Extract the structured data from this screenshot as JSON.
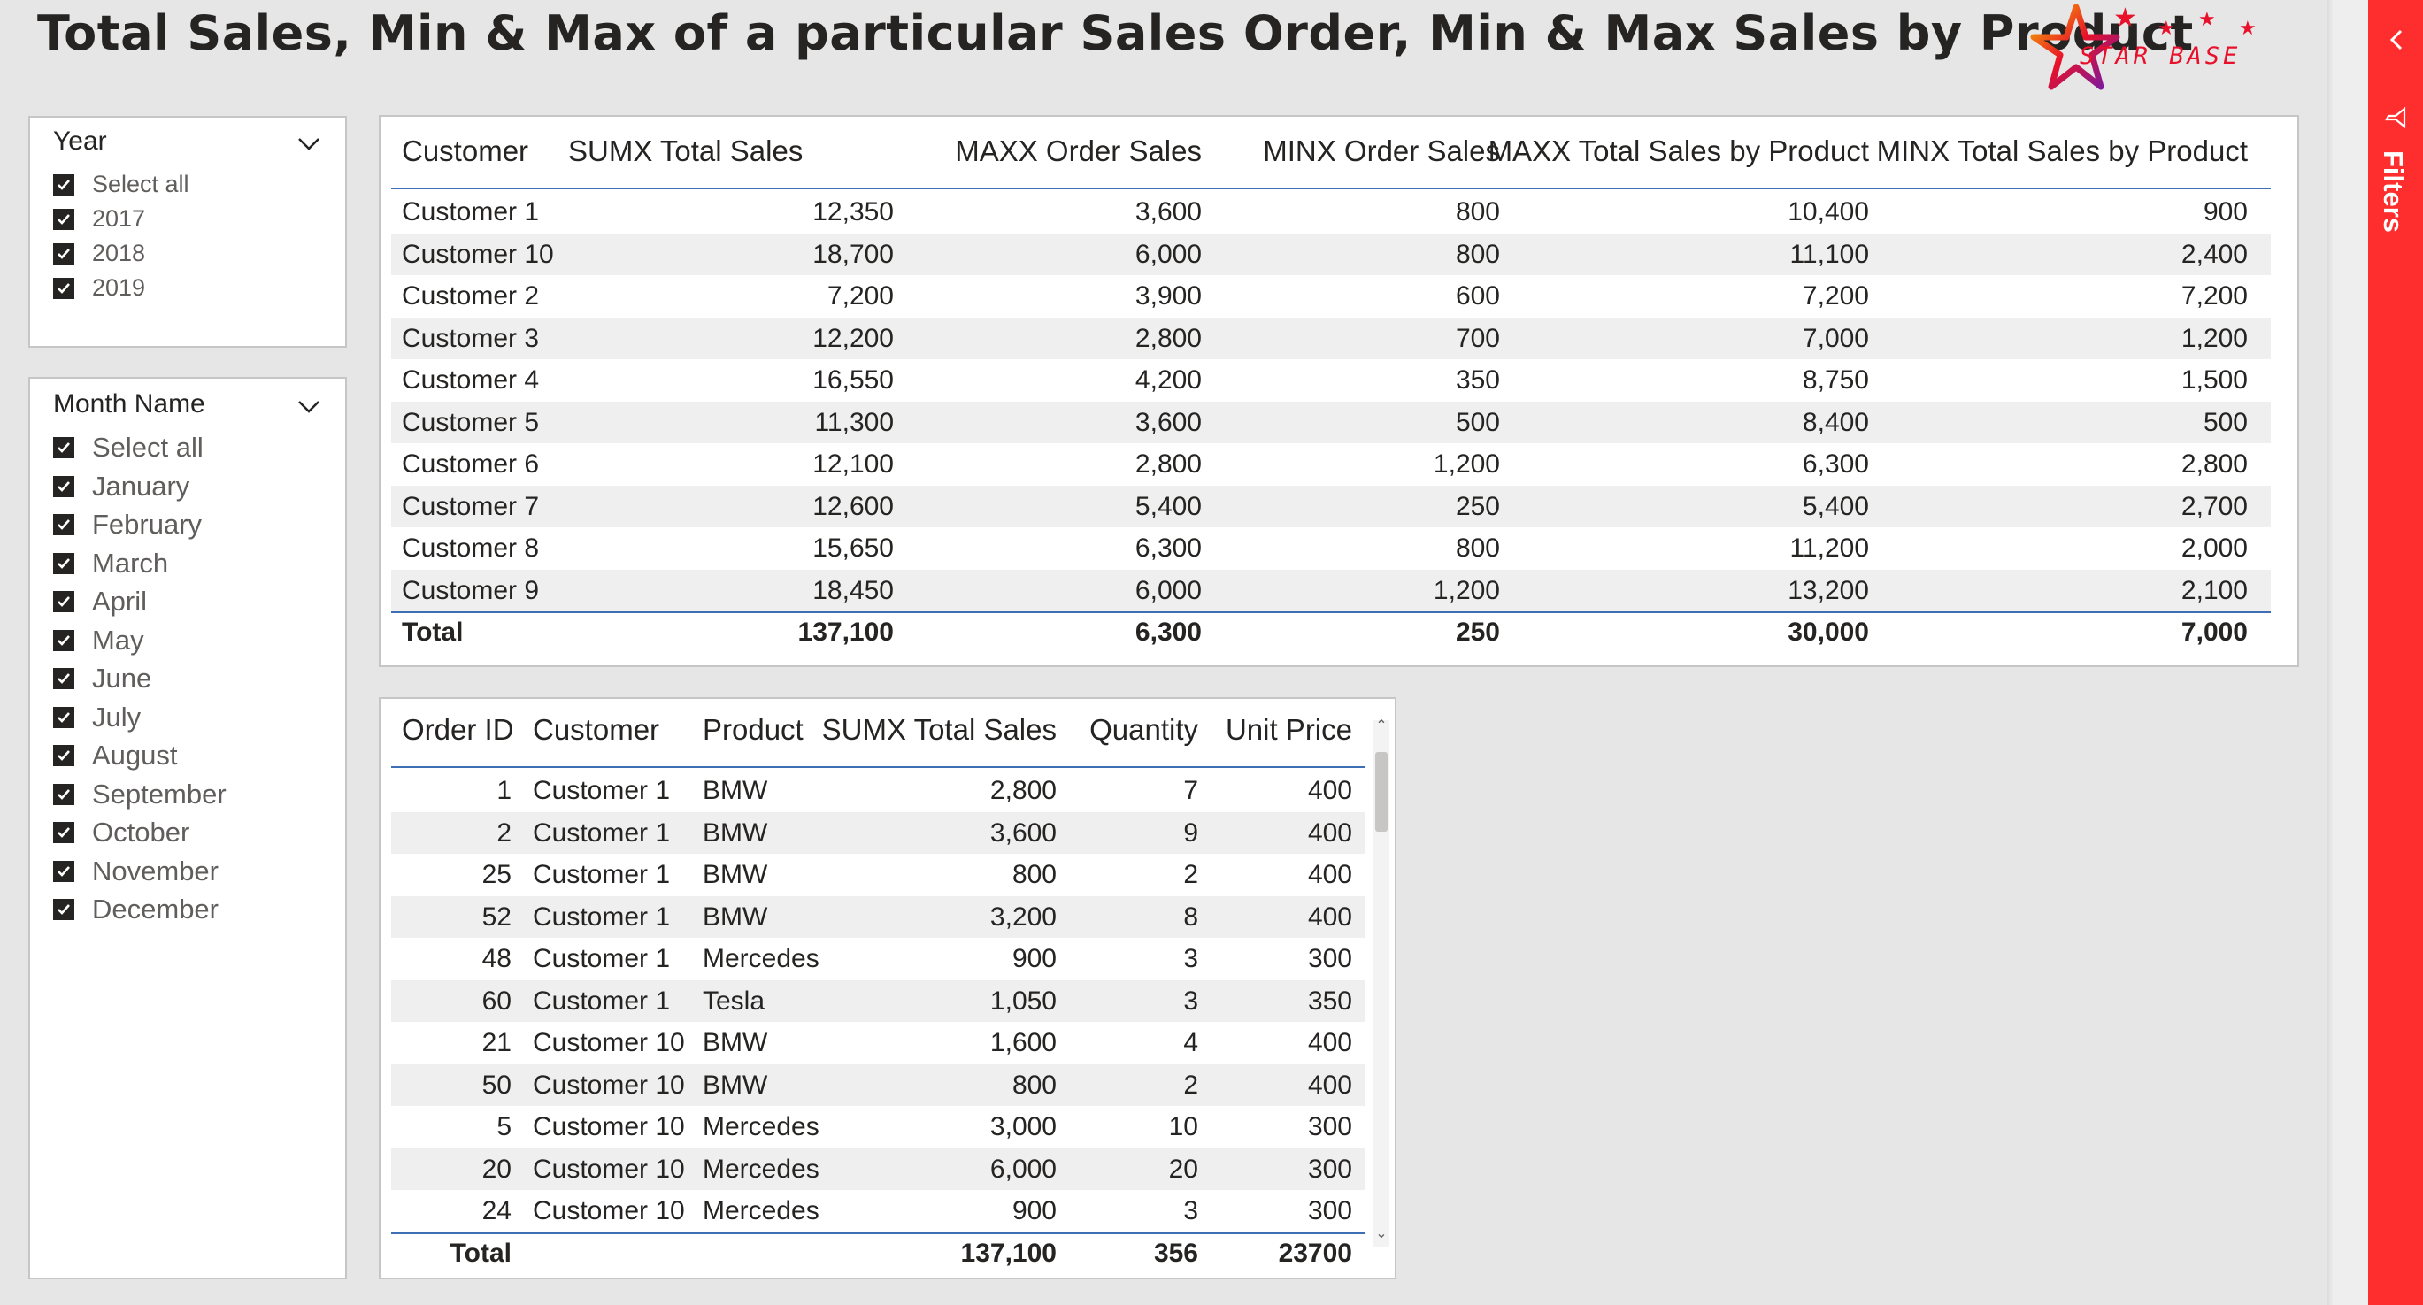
{
  "title": "Total Sales, Min & Max of a particular Sales Order, Min & Max Sales by Product",
  "logo_text": "STAR BASE",
  "colors": {
    "accent_red": "#ff2e2e",
    "header_line": "#3e6fb5",
    "alt_row": "#efefef"
  },
  "year_slicer": {
    "title": "Year",
    "items": [
      "Select all",
      "2017",
      "2018",
      "2019"
    ]
  },
  "month_slicer": {
    "title": "Month Name",
    "items": [
      "Select all",
      "January",
      "February",
      "March",
      "April",
      "May",
      "June",
      "July",
      "August",
      "September",
      "October",
      "November",
      "December"
    ]
  },
  "summary_table": {
    "columns": [
      "Customer",
      "SUMX Total Sales",
      "MAXX Order Sales",
      "MINX Order Sales",
      "MAXX Total Sales by Product",
      "MINX Total Sales by Product"
    ],
    "rows": [
      [
        "Customer 1",
        "12,350",
        "3,600",
        "800",
        "10,400",
        "900"
      ],
      [
        "Customer 10",
        "18,700",
        "6,000",
        "800",
        "11,100",
        "2,400"
      ],
      [
        "Customer 2",
        "7,200",
        "3,900",
        "600",
        "7,200",
        "7,200"
      ],
      [
        "Customer 3",
        "12,200",
        "2,800",
        "700",
        "7,000",
        "1,200"
      ],
      [
        "Customer 4",
        "16,550",
        "4,200",
        "350",
        "8,750",
        "1,500"
      ],
      [
        "Customer 5",
        "11,300",
        "3,600",
        "500",
        "8,400",
        "500"
      ],
      [
        "Customer 6",
        "12,100",
        "2,800",
        "1,200",
        "6,300",
        "2,800"
      ],
      [
        "Customer 7",
        "12,600",
        "5,400",
        "250",
        "5,400",
        "2,700"
      ],
      [
        "Customer 8",
        "15,650",
        "6,300",
        "800",
        "11,200",
        "2,000"
      ],
      [
        "Customer 9",
        "18,450",
        "6,000",
        "1,200",
        "13,200",
        "2,100"
      ]
    ],
    "total": [
      "Total",
      "137,100",
      "6,300",
      "250",
      "30,000",
      "7,000"
    ]
  },
  "orders_table": {
    "columns": [
      "Order ID",
      "Customer",
      "Product",
      "SUMX Total Sales",
      "Quantity",
      "Unit Price"
    ],
    "rows": [
      [
        "1",
        "Customer 1",
        "BMW",
        "2,800",
        "7",
        "400"
      ],
      [
        "2",
        "Customer 1",
        "BMW",
        "3,600",
        "9",
        "400"
      ],
      [
        "25",
        "Customer 1",
        "BMW",
        "800",
        "2",
        "400"
      ],
      [
        "52",
        "Customer 1",
        "BMW",
        "3,200",
        "8",
        "400"
      ],
      [
        "48",
        "Customer 1",
        "Mercedes",
        "900",
        "3",
        "300"
      ],
      [
        "60",
        "Customer 1",
        "Tesla",
        "1,050",
        "3",
        "350"
      ],
      [
        "21",
        "Customer 10",
        "BMW",
        "1,600",
        "4",
        "400"
      ],
      [
        "50",
        "Customer 10",
        "BMW",
        "800",
        "2",
        "400"
      ],
      [
        "5",
        "Customer 10",
        "Mercedes",
        "3,000",
        "10",
        "300"
      ],
      [
        "20",
        "Customer 10",
        "Mercedes",
        "6,000",
        "20",
        "300"
      ],
      [
        "24",
        "Customer 10",
        "Mercedes",
        "900",
        "3",
        "300"
      ]
    ],
    "total": [
      "Total",
      "",
      "",
      "137,100",
      "356",
      "23700"
    ]
  },
  "filters_pane": {
    "label": "Filters"
  }
}
